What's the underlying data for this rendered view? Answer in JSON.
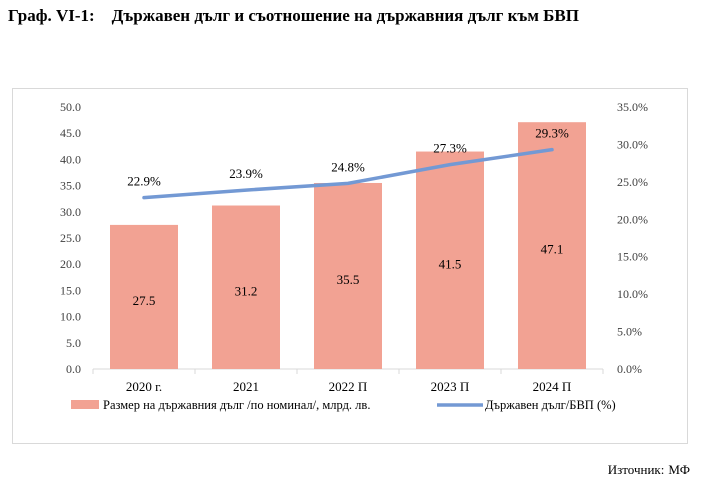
{
  "page": {
    "title": "Граф. VI-1:    Държавен дълг и съотношение на държавния дълг към БВП",
    "source_label": "Източник:",
    "source_value": "МФ"
  },
  "colors": {
    "bar": "#f2a293",
    "line": "#7399d4",
    "axis_text": "#404040",
    "grid": "#d9d9d9"
  },
  "chart_data": {
    "type": "bar",
    "categories": [
      "2020 г.",
      "2021",
      "2022 П",
      "2023 П",
      "2024 П"
    ],
    "series": [
      {
        "name": "Размер на държавния дълг /по номинал/, млрд. лв.",
        "type": "bar",
        "axis": "left",
        "values": [
          27.5,
          31.2,
          35.5,
          41.5,
          47.1
        ],
        "labels": [
          "27.5",
          "31.2",
          "35.5",
          "41.5",
          "47.1"
        ]
      },
      {
        "name": "Държавен дълг/БВП (%)",
        "type": "line",
        "axis": "right",
        "values": [
          22.9,
          23.9,
          24.8,
          27.3,
          29.3
        ],
        "labels": [
          "22.9%",
          "23.9%",
          "24.8%",
          "27.3%",
          "29.3%"
        ]
      }
    ],
    "y_left": {
      "min": 0,
      "max": 50,
      "step": 5,
      "ticks": [
        "0.0",
        "5.0",
        "10.0",
        "15.0",
        "20.0",
        "25.0",
        "30.0",
        "35.0",
        "40.0",
        "45.0",
        "50.0"
      ]
    },
    "y_right": {
      "min": 0,
      "max": 35,
      "step": 5,
      "ticks": [
        "0.0%",
        "5.0%",
        "10.0%",
        "15.0%",
        "20.0%",
        "25.0%",
        "30.0%",
        "35.0%"
      ]
    },
    "grid": false,
    "legend": "bottom"
  }
}
